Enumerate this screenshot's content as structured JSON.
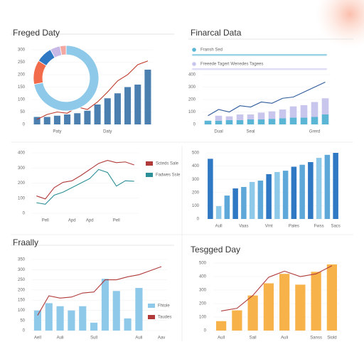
{
  "chart_data": [
    {
      "type": "combo",
      "title": "Freged Daty",
      "categories": [
        null,
        null,
        "Paty",
        null,
        null,
        null,
        null,
        "Daty",
        null,
        null,
        null,
        null
      ],
      "ylim": [
        0,
        300
      ],
      "yticks": [
        0,
        50,
        100,
        150,
        200,
        250,
        300
      ],
      "grid": true,
      "series": [
        {
          "type": "bar",
          "color": "#4a7fb0",
          "values": [
            30,
            30,
            35,
            40,
            45,
            55,
            80,
            105,
            125,
            150,
            160,
            220
          ]
        },
        {
          "type": "line",
          "color": "#c0392b",
          "values": [
            20,
            40,
            50,
            45,
            70,
            60,
            90,
            130,
            175,
            200,
            240,
            255
          ]
        }
      ]
    },
    {
      "type": "pie",
      "donut": true,
      "values": [
        72,
        12,
        8,
        5,
        3
      ],
      "colors": [
        "#8ec9ea",
        "#f26b4a",
        "#2f78c4",
        "#c7b8e6",
        "#f4a6a0"
      ]
    },
    {
      "type": "combo",
      "title": "Finarcal Data",
      "stacked": true,
      "legend": "top",
      "categories": [
        null,
        "Dual",
        null,
        null,
        "Seal",
        null,
        null,
        null,
        null,
        null,
        "Grerd",
        null
      ],
      "ylim": [
        0,
        400
      ],
      "yticks": [
        0,
        100,
        200,
        300,
        400
      ],
      "grid": true,
      "series": [
        {
          "name": "Fransh Sed",
          "type": "bar",
          "color": "#5bb6d6",
          "values": [
            30,
            30,
            35,
            35,
            40,
            40,
            45,
            50,
            55,
            55,
            60,
            80
          ]
        },
        {
          "name": "Freeede Tagert Wenedes Tagees",
          "type": "bar",
          "color": "#c9c6ee",
          "values": [
            0,
            40,
            30,
            45,
            40,
            55,
            60,
            70,
            90,
            100,
            120,
            130
          ]
        },
        {
          "type": "line",
          "color": "#2d5a9b",
          "values": [
            70,
            120,
            100,
            150,
            140,
            180,
            170,
            210,
            220,
            260,
            300,
            340
          ]
        }
      ]
    },
    {
      "type": "line",
      "legend": "right",
      "categories": [
        null,
        "Pell",
        null,
        null,
        "Apd",
        null,
        "Apd",
        null,
        null,
        "Pell",
        null,
        null
      ],
      "ylim": [
        0,
        400
      ],
      "yticks": [
        0,
        100,
        200,
        300,
        400
      ],
      "grid": true,
      "series": [
        {
          "name": "Scteds Sale",
          "type": "line",
          "color": "#b03a3a",
          "values": [
            115,
            95,
            170,
            205,
            215,
            250,
            290,
            330,
            350,
            335,
            340,
            320
          ]
        },
        {
          "name": "Fadwes Ssle",
          "type": "line",
          "color": "#2a8f96",
          "values": [
            70,
            60,
            120,
            140,
            170,
            200,
            230,
            290,
            270,
            180,
            215,
            212
          ]
        }
      ]
    },
    {
      "type": "bar",
      "categories": [
        null,
        "Aull",
        null,
        null,
        "Vaas",
        null,
        null,
        "Vrnt",
        null,
        null,
        "Pales",
        null,
        null,
        "Fwss",
        null,
        "Sacs"
      ],
      "ylim": [
        0,
        500
      ],
      "yticks": [
        0,
        100,
        200,
        300,
        400,
        500
      ],
      "grid": true,
      "series": [
        {
          "type": "bar",
          "colors": [
            "#2f78c4",
            "#8ec9ea",
            "#5da7d9",
            "#2f78c4",
            "#5da7d9",
            "#8ec9ea",
            "#5da7d9",
            "#2f78c4",
            "#8ec9ea",
            "#5da7d9",
            "#2f78c4",
            "#5da7d9",
            "#2f78c4",
            "#8ec9ea",
            "#5da7d9",
            "#2f78c4"
          ],
          "values": [
            455,
            97,
            177,
            231,
            242,
            280,
            290,
            339,
            355,
            365,
            395,
            410,
            430,
            462,
            485,
            500
          ]
        }
      ]
    },
    {
      "type": "combo",
      "title": "Fraally",
      "legend": "right",
      "categories": [
        "Aell",
        null,
        "Auli",
        null,
        null,
        "Sull",
        null,
        null,
        null,
        "Auli",
        null,
        "Aav"
      ],
      "ylim": [
        0,
        350
      ],
      "yticks": [
        0,
        50,
        100,
        150,
        200,
        250,
        300,
        350
      ],
      "grid": true,
      "series": [
        {
          "name": "Fhtole",
          "type": "bar",
          "color": "#8ec9ea",
          "values": [
            99,
            135,
            120,
            99,
            120,
            39,
            255,
            195,
            60,
            210,
            null,
            null
          ]
        },
        {
          "name": "Taudes",
          "type": "line",
          "color": "#b03a3a",
          "values": [
            75,
            171,
            160,
            165,
            185,
            190,
            250,
            250,
            265,
            275,
            295,
            315
          ]
        }
      ]
    },
    {
      "type": "combo",
      "title": "Tesgged Day",
      "categories": [
        "Aull",
        null,
        "Sail",
        null,
        "Auli",
        null,
        "Sanss",
        "Siold"
      ],
      "ylim": [
        0,
        500
      ],
      "yticks": [
        0,
        100,
        200,
        300,
        400,
        500
      ],
      "grid": true,
      "series": [
        {
          "type": "bar",
          "color": "#f7b24a",
          "values": [
            70,
            150,
            260,
            350,
            420,
            340,
            435,
            490
          ]
        },
        {
          "type": "line",
          "color": "#b03a3a",
          "values": [
            145,
            165,
            260,
            395,
            440,
            400,
            420,
            480
          ]
        }
      ]
    }
  ]
}
